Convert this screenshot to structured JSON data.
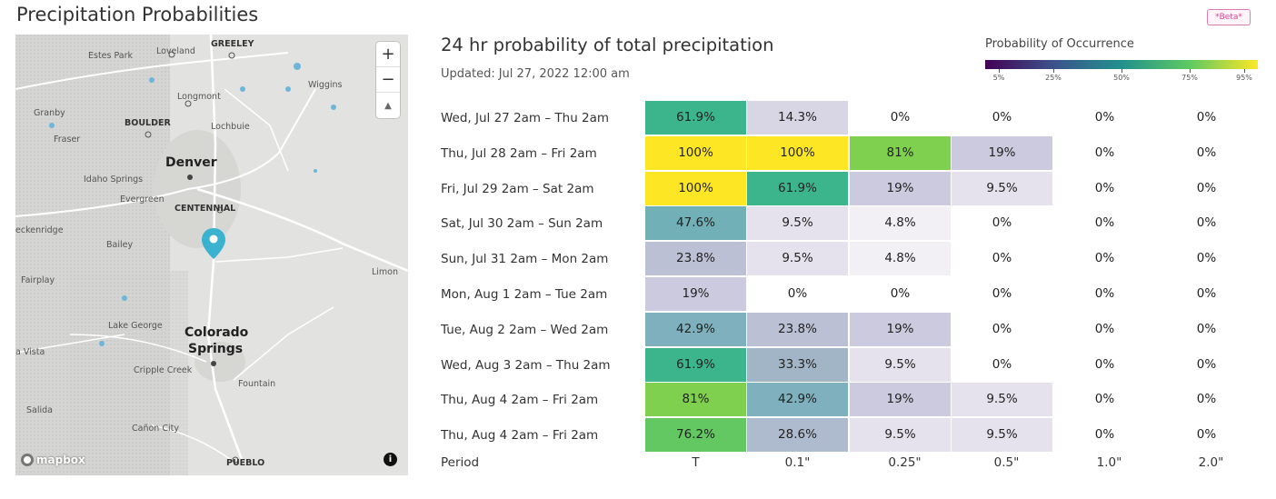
{
  "page_title": "Precipitation Probabilities",
  "beta_badge": "*Beta*",
  "map": {
    "labels": [
      {
        "text": "GREELEY",
        "cls": "big"
      },
      {
        "text": "Loveland",
        "cls": ""
      },
      {
        "text": "Estes Park",
        "cls": ""
      },
      {
        "text": "Longmont",
        "cls": ""
      },
      {
        "text": "Wiggins",
        "cls": ""
      },
      {
        "text": "Granby",
        "cls": ""
      },
      {
        "text": "BOULDER",
        "cls": "big"
      },
      {
        "text": "Lochbuie",
        "cls": ""
      },
      {
        "text": "Fraser",
        "cls": ""
      },
      {
        "text": "Denver",
        "cls": "city"
      },
      {
        "text": "Idaho Springs",
        "cls": ""
      },
      {
        "text": "Evergreen",
        "cls": ""
      },
      {
        "text": "CENTENNIAL",
        "cls": "big"
      },
      {
        "text": "eckenridge",
        "cls": ""
      },
      {
        "text": "Bailey",
        "cls": ""
      },
      {
        "text": "Limon",
        "cls": ""
      },
      {
        "text": "Fairplay",
        "cls": ""
      },
      {
        "text": "Lake George",
        "cls": ""
      },
      {
        "text": "Colorado",
        "cls": "city"
      },
      {
        "text": "Springs",
        "cls": "city"
      },
      {
        "text": "a Vista",
        "cls": ""
      },
      {
        "text": "Cripple Creek",
        "cls": ""
      },
      {
        "text": "Fountain",
        "cls": ""
      },
      {
        "text": "Salida",
        "cls": ""
      },
      {
        "text": "Cañon City",
        "cls": ""
      },
      {
        "text": "PUEBLO",
        "cls": "big"
      }
    ],
    "zoom_in": "+",
    "zoom_out": "−",
    "compass": "▲",
    "logo_text": "mapbox",
    "info": "i"
  },
  "table": {
    "title": "24 hr probability of total precipitation",
    "updated_label": "Updated:",
    "updated_value": "Jul 27, 2022 12:00 am",
    "period_label": "Period",
    "columns": [
      "T",
      "0.1\"",
      "0.25\"",
      "0.5\"",
      "1.0\"",
      "2.0\""
    ],
    "rows": [
      {
        "label": "Wed, Jul 27 2am – Thu 2am",
        "values": [
          "61.9%",
          "14.3%",
          "0%",
          "0%",
          "0%",
          "0%"
        ],
        "nums": [
          61.9,
          14.3,
          0,
          0,
          0,
          0
        ]
      },
      {
        "label": "Thu, Jul 28 2am – Fri 2am",
        "values": [
          "100%",
          "100%",
          "81%",
          "19%",
          "0%",
          "0%"
        ],
        "nums": [
          100,
          100,
          81,
          19,
          0,
          0
        ]
      },
      {
        "label": "Fri, Jul 29 2am – Sat 2am",
        "values": [
          "100%",
          "61.9%",
          "19%",
          "9.5%",
          "0%",
          "0%"
        ],
        "nums": [
          100,
          61.9,
          19,
          9.5,
          0,
          0
        ]
      },
      {
        "label": "Sat, Jul 30 2am – Sun 2am",
        "values": [
          "47.6%",
          "9.5%",
          "4.8%",
          "0%",
          "0%",
          "0%"
        ],
        "nums": [
          47.6,
          9.5,
          4.8,
          0,
          0,
          0
        ]
      },
      {
        "label": "Sun, Jul 31 2am – Mon 2am",
        "values": [
          "23.8%",
          "9.5%",
          "4.8%",
          "0%",
          "0%",
          "0%"
        ],
        "nums": [
          23.8,
          9.5,
          4.8,
          0,
          0,
          0
        ]
      },
      {
        "label": "Mon, Aug 1 2am – Tue 2am",
        "values": [
          "19%",
          "0%",
          "0%",
          "0%",
          "0%",
          "0%"
        ],
        "nums": [
          19,
          0,
          0,
          0,
          0,
          0
        ]
      },
      {
        "label": "Tue, Aug 2 2am – Wed 2am",
        "values": [
          "42.9%",
          "23.8%",
          "19%",
          "0%",
          "0%",
          "0%"
        ],
        "nums": [
          42.9,
          23.8,
          19,
          0,
          0,
          0
        ]
      },
      {
        "label": "Wed, Aug 3 2am – Thu 2am",
        "values": [
          "61.9%",
          "33.3%",
          "9.5%",
          "0%",
          "0%",
          "0%"
        ],
        "nums": [
          61.9,
          33.3,
          9.5,
          0,
          0,
          0
        ]
      },
      {
        "label": "Thu, Aug 4 2am – Fri 2am",
        "values": [
          "81%",
          "42.9%",
          "19%",
          "9.5%",
          "0%",
          "0%"
        ],
        "nums": [
          81,
          42.9,
          19,
          9.5,
          0,
          0
        ]
      },
      {
        "label": "Thu, Aug 4 2am – Fri 2am",
        "values": [
          "76.2%",
          "28.6%",
          "9.5%",
          "9.5%",
          "0%",
          "0%"
        ],
        "nums": [
          76.2,
          28.6,
          9.5,
          9.5,
          0,
          0
        ]
      }
    ]
  },
  "legend": {
    "title": "Probability of Occurrence",
    "ticks": [
      "5%",
      "25%",
      "50%",
      "75%",
      "95%"
    ],
    "tick_values": [
      5,
      25,
      50,
      75,
      95
    ],
    "colors": [
      "#440154",
      "#3b528b",
      "#21918c",
      "#5ec962",
      "#fde725"
    ]
  }
}
